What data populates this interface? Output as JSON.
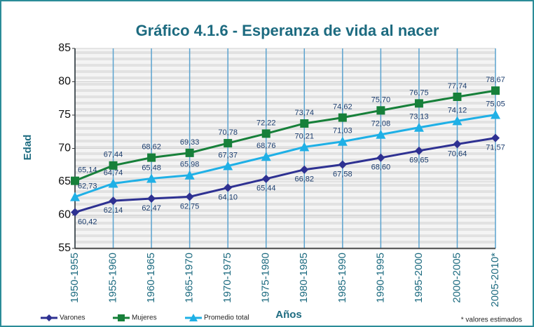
{
  "chart_data": {
    "type": "line",
    "title": "Gráfico 4.1.6 - Esperanza de vida al nacer",
    "y_label": "Edad",
    "x_label": "Años",
    "note": "* valores estimados",
    "categories": [
      "1950-1955",
      "1955-1960",
      "1960-1965",
      "1965-1970",
      "1970-1975",
      "1975-1980",
      "1980-1985",
      "1985-1990",
      "1990-1995",
      "1995-2000",
      "2000-2005",
      "2005-2010*"
    ],
    "series": [
      {
        "name": "Varones",
        "color": "#2e3192",
        "marker": "diamond",
        "label_pos": "below",
        "values": [
          60.42,
          62.14,
          62.47,
          62.75,
          64.1,
          65.44,
          66.82,
          67.58,
          68.6,
          69.65,
          70.64,
          71.57
        ],
        "value_labels": [
          "60,42",
          "62,14",
          "62,47",
          "62,75",
          "64,10",
          "65,44",
          "66,82",
          "67,58",
          "68,60",
          "69,65",
          "70,64",
          "71,57"
        ]
      },
      {
        "name": "Mujeres",
        "color": "#17803a",
        "marker": "square",
        "label_pos": "above",
        "values": [
          65.14,
          67.44,
          68.62,
          69.33,
          70.78,
          72.22,
          73.74,
          74.62,
          75.7,
          76.75,
          77.74,
          78.67
        ],
        "value_labels": [
          "65,14",
          "67,44",
          "68,62",
          "69,33",
          "70,78",
          "72,22",
          "73,74",
          "74,62",
          "75,70",
          "76,75",
          "77,74",
          "78,67"
        ]
      },
      {
        "name": "Promedio total",
        "color": "#1fb0e6",
        "marker": "triangle",
        "label_pos": "above",
        "values": [
          62.73,
          64.74,
          65.48,
          65.98,
          67.37,
          68.76,
          70.21,
          71.03,
          72.08,
          73.13,
          74.12,
          75.05
        ],
        "value_labels": [
          "62,73",
          "64,74",
          "65,48",
          "65,98",
          "67,37",
          "68,76",
          "70,21",
          "71,03",
          "72,08",
          "73,13",
          "74,12",
          "75,05"
        ]
      }
    ],
    "ylim": [
      55,
      85
    ],
    "yticks": [
      55,
      60,
      65,
      70,
      75,
      80,
      85
    ],
    "grid": true,
    "legend": "bottom-left"
  }
}
